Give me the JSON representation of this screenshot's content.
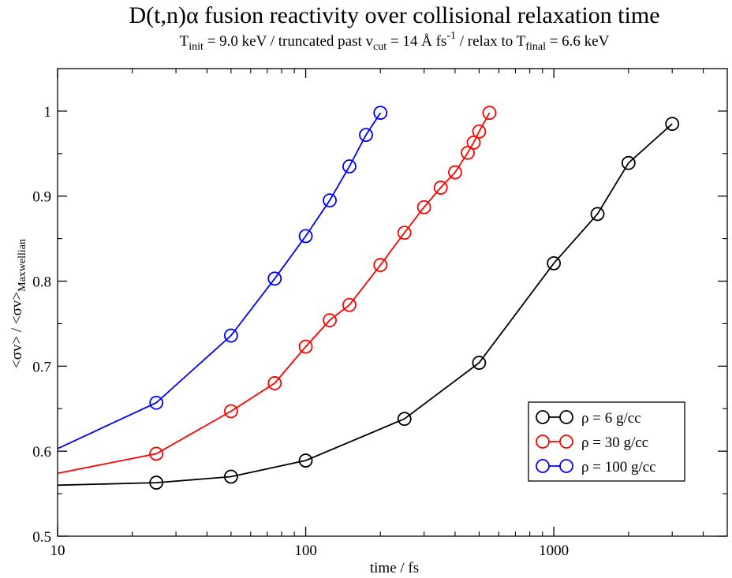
{
  "chart_data": {
    "type": "line",
    "title": "D(t,n)α fusion reactivity over collisional relaxation time",
    "subtitle": {
      "t_init_prefix": "T",
      "t_init_sub": "init",
      "t_init_rest": " = 9.0 keV / truncated past v",
      "v_cut_sub": "cut",
      "v_cut_rest": " = 14 Å fs",
      "fs_sup": "-1",
      "relax_rest": " / relax to T",
      "t_final_sub": "final",
      "t_final_rest": " = 6.6 keV"
    },
    "xlabel": "time / fs",
    "ylabel": {
      "main": "<σv> / <σv>",
      "sub": "Maxwellian"
    },
    "x_scale": "log",
    "xlim": [
      10,
      5000
    ],
    "ylim": [
      0.5,
      1.05
    ],
    "x_ticks": [
      10,
      100,
      1000
    ],
    "x_tick_labels": [
      "10",
      "100",
      "1000"
    ],
    "y_ticks": [
      0.5,
      0.6,
      0.7,
      0.8,
      0.9,
      1.0
    ],
    "y_tick_labels": [
      "0.5",
      "0.6",
      "0.7",
      "0.8",
      "0.9",
      "1"
    ],
    "legend_position": "lower-right",
    "series": [
      {
        "name": "ρ = 6 g/cc",
        "color": "#000000",
        "line": {
          "x": [
            10,
            25,
            50,
            100,
            250,
            500,
            1000,
            1500,
            2000,
            3000
          ],
          "y": [
            0.56,
            0.563,
            0.57,
            0.589,
            0.638,
            0.704,
            0.821,
            0.879,
            0.939,
            0.985
          ]
        },
        "markers": {
          "x": [
            25,
            50,
            100,
            250,
            500,
            1000,
            1500,
            2000,
            3000
          ],
          "y": [
            0.563,
            0.57,
            0.589,
            0.638,
            0.704,
            0.821,
            0.879,
            0.939,
            0.985
          ]
        }
      },
      {
        "name": "ρ = 30 g/cc",
        "color": "#ff0000",
        "line": {
          "x": [
            10,
            25,
            50,
            75,
            100,
            125,
            150,
            200,
            250,
            300,
            350,
            400,
            450,
            475,
            500,
            550
          ],
          "y": [
            0.574,
            0.597,
            0.647,
            0.68,
            0.723,
            0.754,
            0.772,
            0.819,
            0.857,
            0.887,
            0.91,
            0.928,
            0.951,
            0.963,
            0.976,
            0.998
          ]
        },
        "markers": {
          "x": [
            25,
            50,
            75,
            100,
            125,
            150,
            200,
            250,
            300,
            350,
            400,
            450,
            475,
            500,
            550
          ],
          "y": [
            0.597,
            0.647,
            0.68,
            0.723,
            0.754,
            0.772,
            0.819,
            0.857,
            0.887,
            0.91,
            0.928,
            0.951,
            0.963,
            0.976,
            0.998
          ]
        }
      },
      {
        "name": "ρ = 100 g/cc",
        "color": "#0000ff",
        "line": {
          "x": [
            10,
            25,
            50,
            75,
            100,
            125,
            150,
            175,
            200
          ],
          "y": [
            0.603,
            0.657,
            0.736,
            0.803,
            0.853,
            0.895,
            0.935,
            0.972,
            0.998
          ]
        },
        "markers": {
          "x": [
            25,
            50,
            75,
            100,
            125,
            150,
            175,
            200
          ],
          "y": [
            0.657,
            0.736,
            0.803,
            0.853,
            0.895,
            0.935,
            0.972,
            0.998
          ]
        }
      }
    ]
  }
}
